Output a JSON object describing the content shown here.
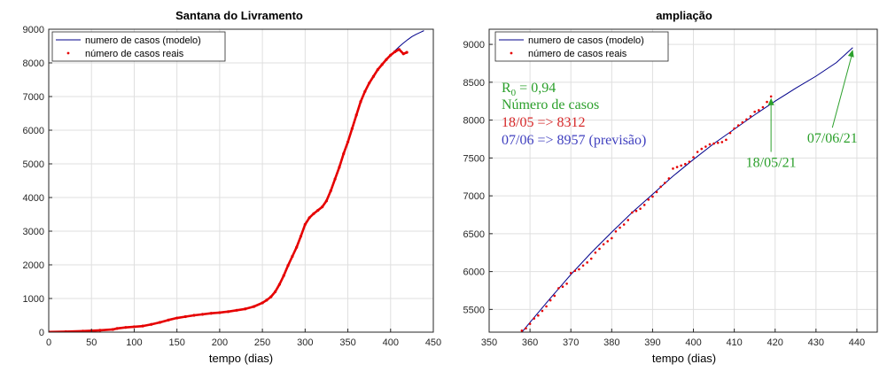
{
  "chart_data": [
    {
      "type": "line",
      "title": "Santana do Livramento",
      "xlabel": "tempo (dias)",
      "ylabel": "",
      "xlim": [
        0,
        450
      ],
      "ylim": [
        0,
        9000
      ],
      "xticks": [
        0,
        50,
        100,
        150,
        200,
        250,
        300,
        350,
        400,
        450
      ],
      "yticks": [
        0,
        1000,
        2000,
        3000,
        4000,
        5000,
        6000,
        7000,
        8000,
        9000
      ],
      "grid": true,
      "legend_position": "top-left",
      "series": [
        {
          "name": "numero de casos (modelo)",
          "style": "line",
          "color": "#00008b",
          "x": [
            0,
            20,
            40,
            60,
            75,
            80,
            90,
            100,
            110,
            120,
            130,
            140,
            150,
            160,
            170,
            180,
            190,
            200,
            210,
            220,
            230,
            240,
            250,
            255,
            260,
            265,
            270,
            275,
            280,
            285,
            290,
            295,
            300,
            305,
            310,
            315,
            320,
            325,
            330,
            335,
            340,
            345,
            350,
            355,
            360,
            365,
            370,
            375,
            380,
            385,
            390,
            395,
            400,
            405,
            410,
            415,
            420,
            425,
            430,
            435,
            439
          ],
          "y": [
            5,
            15,
            30,
            55,
            80,
            110,
            140,
            160,
            180,
            230,
            290,
            360,
            420,
            460,
            500,
            530,
            560,
            580,
            610,
            650,
            690,
            760,
            870,
            950,
            1050,
            1200,
            1420,
            1680,
            1980,
            2250,
            2520,
            2850,
            3200,
            3400,
            3520,
            3620,
            3720,
            3900,
            4200,
            4550,
            4900,
            5300,
            5650,
            6050,
            6450,
            6850,
            7150,
            7400,
            7600,
            7800,
            7950,
            8100,
            8230,
            8360,
            8480,
            8590,
            8690,
            8780,
            8850,
            8910,
            8957
          ]
        },
        {
          "name": "número de casos reais",
          "style": "points",
          "color": "#e60000",
          "x": [
            0,
            20,
            40,
            60,
            75,
            80,
            90,
            100,
            110,
            120,
            130,
            140,
            150,
            160,
            170,
            180,
            190,
            200,
            210,
            220,
            230,
            240,
            250,
            255,
            260,
            265,
            270,
            275,
            280,
            285,
            290,
            295,
            300,
            305,
            310,
            315,
            320,
            325,
            330,
            335,
            340,
            345,
            350,
            355,
            360,
            365,
            370,
            375,
            380,
            385,
            390,
            395,
            400,
            405,
            410,
            415,
            419
          ],
          "y": [
            5,
            15,
            30,
            55,
            80,
            110,
            140,
            160,
            180,
            230,
            290,
            360,
            420,
            460,
            500,
            530,
            560,
            580,
            610,
            650,
            690,
            760,
            870,
            950,
            1050,
            1200,
            1420,
            1680,
            1980,
            2250,
            2520,
            2850,
            3200,
            3400,
            3520,
            3620,
            3720,
            3900,
            4200,
            4550,
            4900,
            5300,
            5650,
            6050,
            6450,
            6850,
            7150,
            7400,
            7600,
            7800,
            7950,
            8100,
            8230,
            8330,
            8400,
            8270,
            8312
          ]
        }
      ]
    },
    {
      "type": "line",
      "title": "ampliação",
      "xlabel": "tempo (dias)",
      "ylabel": "",
      "xlim": [
        350,
        445
      ],
      "ylim": [
        5200,
        9200
      ],
      "xticks": [
        350,
        360,
        370,
        380,
        390,
        400,
        410,
        420,
        430,
        440
      ],
      "yticks": [
        5500,
        6000,
        6500,
        7000,
        7500,
        8000,
        8500,
        9000
      ],
      "grid": true,
      "legend_position": "top-left",
      "series": [
        {
          "name": "numero de casos (modelo)",
          "style": "line",
          "color": "#00008b",
          "x": [
            355,
            360,
            365,
            370,
            375,
            380,
            385,
            390,
            395,
            400,
            405,
            410,
            415,
            420,
            425,
            430,
            435,
            439
          ],
          "y": [
            5000,
            5330,
            5650,
            5960,
            6250,
            6520,
            6780,
            7020,
            7260,
            7480,
            7690,
            7880,
            8070,
            8250,
            8420,
            8580,
            8760,
            8957
          ]
        },
        {
          "name": "número de casos reais",
          "style": "points",
          "color": "#e60000",
          "x": [
            355,
            356,
            357,
            358,
            359,
            360,
            361,
            362,
            363,
            364,
            365,
            366,
            367,
            368,
            369,
            370,
            371,
            372,
            373,
            374,
            375,
            376,
            377,
            378,
            379,
            380,
            381,
            382,
            383,
            384,
            385,
            386,
            387,
            388,
            389,
            390,
            391,
            392,
            393,
            394,
            395,
            396,
            397,
            398,
            399,
            400,
            401,
            402,
            403,
            404,
            405,
            406,
            407,
            408,
            409,
            410,
            411,
            412,
            413,
            414,
            415,
            416,
            417,
            418,
            419
          ],
          "y": [
            5080,
            5150,
            5180,
            5220,
            5250,
            5310,
            5380,
            5420,
            5480,
            5540,
            5620,
            5680,
            5780,
            5800,
            5840,
            5980,
            6010,
            6030,
            6080,
            6120,
            6170,
            6250,
            6300,
            6360,
            6400,
            6440,
            6530,
            6580,
            6620,
            6680,
            6780,
            6800,
            6830,
            6880,
            6950,
            6990,
            7050,
            7120,
            7170,
            7230,
            7360,
            7380,
            7400,
            7420,
            7450,
            7510,
            7580,
            7620,
            7650,
            7680,
            7690,
            7700,
            7710,
            7740,
            7830,
            7890,
            7930,
            7970,
            8010,
            8050,
            8110,
            8130,
            8170,
            8240,
            8312
          ]
        }
      ],
      "annotations": [
        {
          "kind": "R0",
          "prefix": "R",
          "subscript": "0",
          "text": " = 0,94",
          "color": "#2ca02c"
        },
        {
          "kind": "text",
          "text": "Número de casos",
          "color": "#2ca02c"
        },
        {
          "kind": "text",
          "text": "18/05 => 8312",
          "color": "#d62728"
        },
        {
          "kind": "text",
          "text": "07/06 => 8957 (previsão)",
          "color": "#3f3fbf"
        },
        {
          "kind": "arrow",
          "label": "18/05/21",
          "target": [
            419,
            8290
          ],
          "tail": [
            419,
            7580
          ],
          "color": "#2ca02c"
        },
        {
          "kind": "arrow",
          "label": "07/06/21",
          "target": [
            439,
            8930
          ],
          "tail": [
            434,
            7900
          ],
          "color": "#2ca02c"
        }
      ]
    }
  ]
}
